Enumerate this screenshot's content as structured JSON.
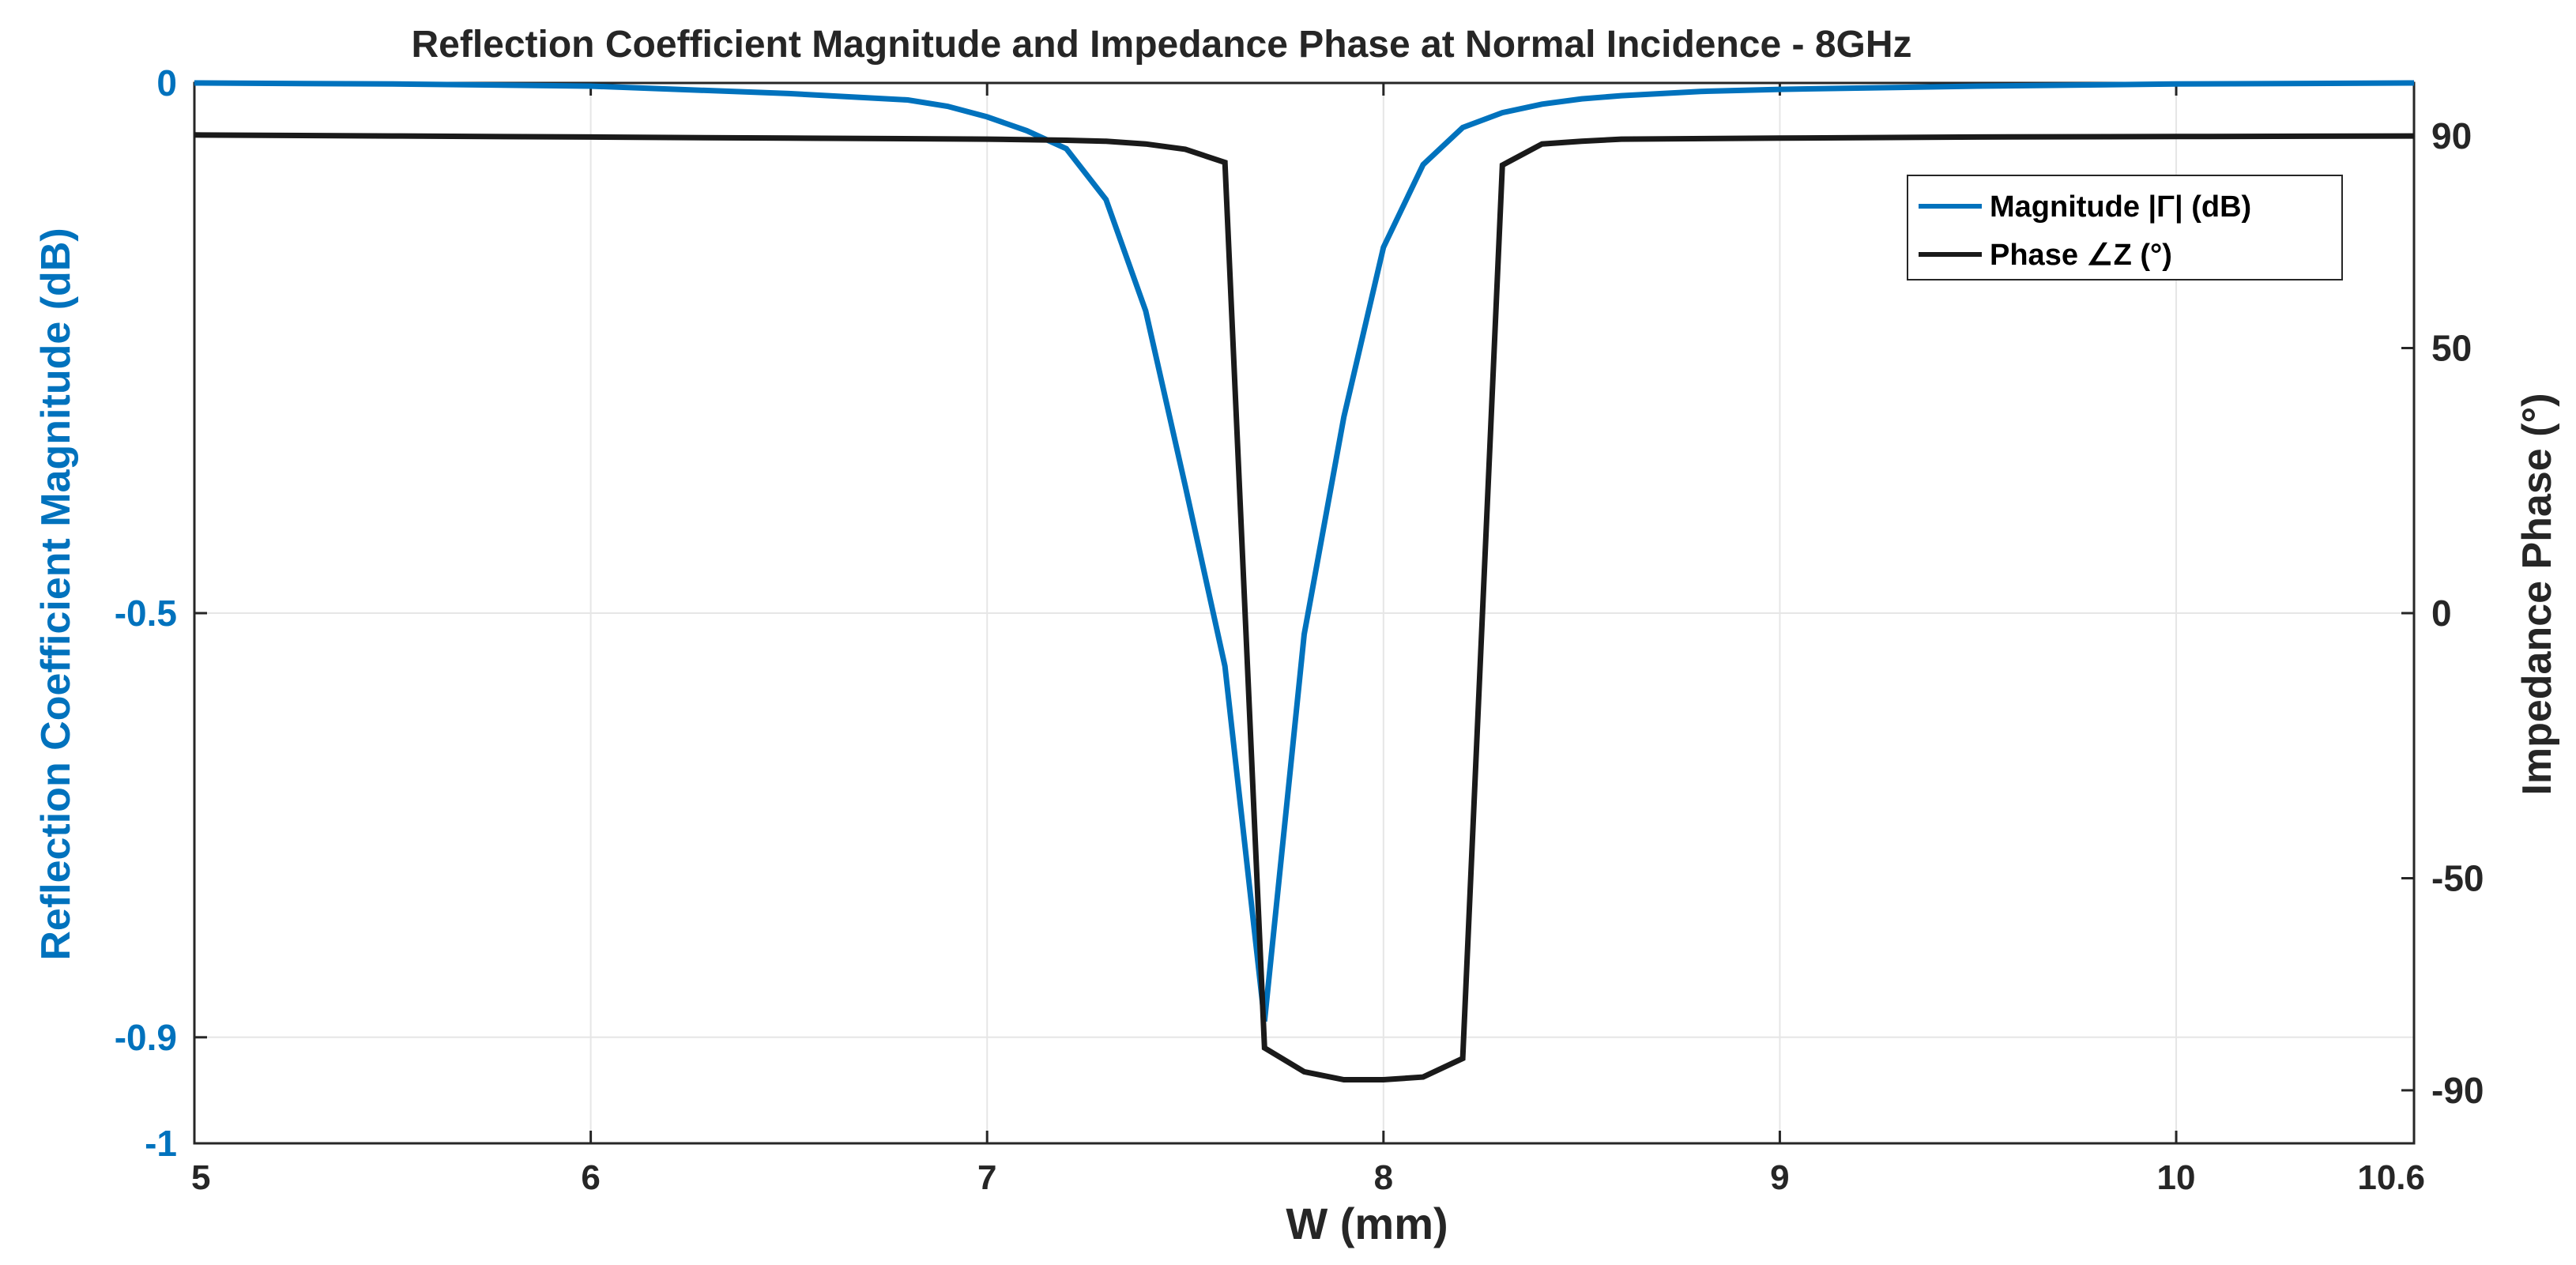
{
  "chart_data": {
    "type": "line",
    "title": "Reflection Coefficient Magnitude and Impedance Phase at Normal Incidence - 8GHz",
    "xlabel": "W (mm)",
    "ylabel_left": "Reflection Coefficient Magnitude (dB)",
    "ylabel_right": "Impedance Phase (°)",
    "xlim": [
      5,
      10.6
    ],
    "ylim_left": [
      -1,
      0
    ],
    "ylim_right": [
      -100,
      100
    ],
    "xticks": [
      5,
      6,
      7,
      8,
      9,
      10,
      10.6
    ],
    "xtick_labels": [
      "5",
      "6",
      "7",
      "8",
      "9",
      "10",
      "10.6"
    ],
    "yticks_left": [
      -1,
      -0.9,
      -0.5,
      0
    ],
    "ytick_labels_left": [
      "-1",
      "-0.9",
      "-0.5",
      "0"
    ],
    "yticks_right": [
      -90,
      -50,
      0,
      50,
      90
    ],
    "ytick_labels_right": [
      "-90",
      "-50",
      "0",
      "50",
      "90"
    ],
    "grid": true,
    "legend_position": "top-right",
    "colors": {
      "magnitude": "#0072BD",
      "phase": "#1a1a1a",
      "grid": "#e6e6e6",
      "axis": "#262626"
    },
    "series": [
      {
        "name": "Magnitude |Γ| (dB)",
        "axis": "left",
        "x": [
          5,
          5.5,
          6,
          6.5,
          6.8,
          6.9,
          7.0,
          7.1,
          7.2,
          7.3,
          7.4,
          7.5,
          7.6,
          7.7,
          7.8,
          7.9,
          8.0,
          8.1,
          8.2,
          8.3,
          8.4,
          8.5,
          8.6,
          8.8,
          9.0,
          9.5,
          10.0,
          10.6
        ],
        "values": [
          0,
          -0.001,
          -0.003,
          -0.01,
          -0.016,
          -0.022,
          -0.032,
          -0.045,
          -0.062,
          -0.11,
          -0.215,
          -0.38,
          -0.55,
          -0.885,
          -0.52,
          -0.315,
          -0.155,
          -0.077,
          -0.042,
          -0.028,
          -0.02,
          -0.015,
          -0.012,
          -0.008,
          -0.006,
          -0.003,
          -0.001,
          0
        ]
      },
      {
        "name": "Phase ∠Z (°)",
        "axis": "right",
        "x": [
          5,
          5.5,
          6,
          6.5,
          7.0,
          7.2,
          7.3,
          7.4,
          7.5,
          7.6,
          7.7,
          7.8,
          7.9,
          8.0,
          8.1,
          8.2,
          8.3,
          8.4,
          8.5,
          8.6,
          9.0,
          9.5,
          10.0,
          10.6
        ],
        "values": [
          90.2,
          90.0,
          89.8,
          89.6,
          89.4,
          89.2,
          89.0,
          88.5,
          87.5,
          85.0,
          -82.0,
          -86.5,
          -88.0,
          -88.0,
          -87.5,
          -84.0,
          84.5,
          88.5,
          89.0,
          89.4,
          89.6,
          89.8,
          89.9,
          90.0
        ]
      }
    ]
  }
}
